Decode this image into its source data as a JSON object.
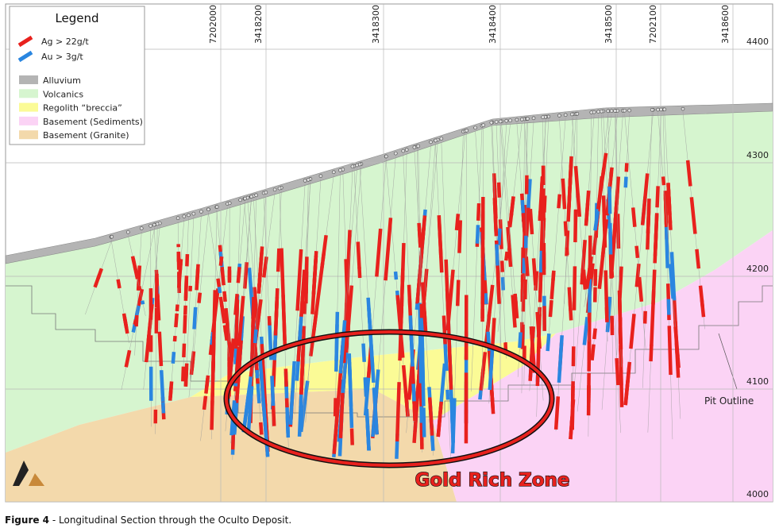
{
  "legend": {
    "title": "Legend",
    "items": [
      {
        "label": "Ag > 22g/t",
        "color": "#e8211d",
        "kind": "bar"
      },
      {
        "label": "Au > 3g/t",
        "color": "#2a86e0",
        "kind": "bar"
      },
      {
        "label": "Alluvium",
        "color": "#b4b4b4",
        "kind": "box"
      },
      {
        "label": "Volcanics",
        "color": "#d6f5cf",
        "kind": "box"
      },
      {
        "label": "Regolith “breccia”",
        "color": "#fbfb96",
        "kind": "box"
      },
      {
        "label": "Basement (Sediments)",
        "color": "#fbd3f5",
        "kind": "box"
      },
      {
        "label": "Basement (Granite)",
        "color": "#f3d9ab",
        "kind": "box"
      }
    ]
  },
  "grid": {
    "top_labels": [
      "7202000",
      "3418200",
      "3418300",
      "3418400",
      "3418500",
      "7202100",
      "3418600"
    ],
    "right_labels": [
      "4400",
      "4300",
      "4200",
      "4100",
      "4000"
    ]
  },
  "annotations": {
    "zone": "Gold Rich Zone",
    "pit": "Pit Outline"
  },
  "caption": {
    "label": "Figure 4",
    "text": "- Longitudinal Section through the Oculto Deposit."
  }
}
